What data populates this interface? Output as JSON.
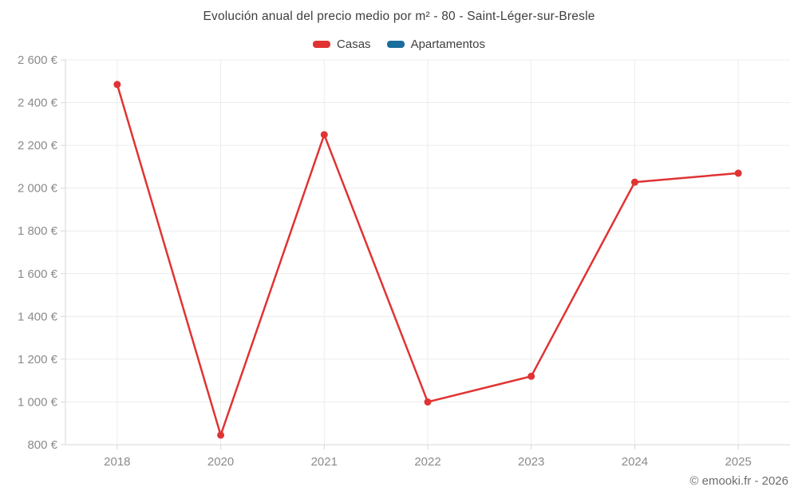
{
  "chart_data": {
    "type": "line",
    "title": "Evolución anual del precio medio por m² - 80 - Saint-Léger-sur-Bresle",
    "categories": [
      "2018",
      "2020",
      "2021",
      "2022",
      "2023",
      "2024",
      "2025"
    ],
    "series": [
      {
        "name": "Casas",
        "color": "#e03333",
        "values": [
          2485,
          845,
          2250,
          1000,
          1120,
          2028,
          2070
        ]
      },
      {
        "name": "Apartamentos",
        "color": "#1a6d9c",
        "values": []
      }
    ],
    "xlabel": "",
    "ylabel": "",
    "ylim": [
      800,
      2600
    ],
    "ytick_step": 200,
    "y_suffix": " €",
    "grid": true,
    "legend_position": "top",
    "grid_color": "#ececec",
    "axis_color": "#d7d7d7",
    "tick_label_color": "#8b8b8b"
  },
  "footer": {
    "copyright": "© emooki.fr - 2026"
  }
}
